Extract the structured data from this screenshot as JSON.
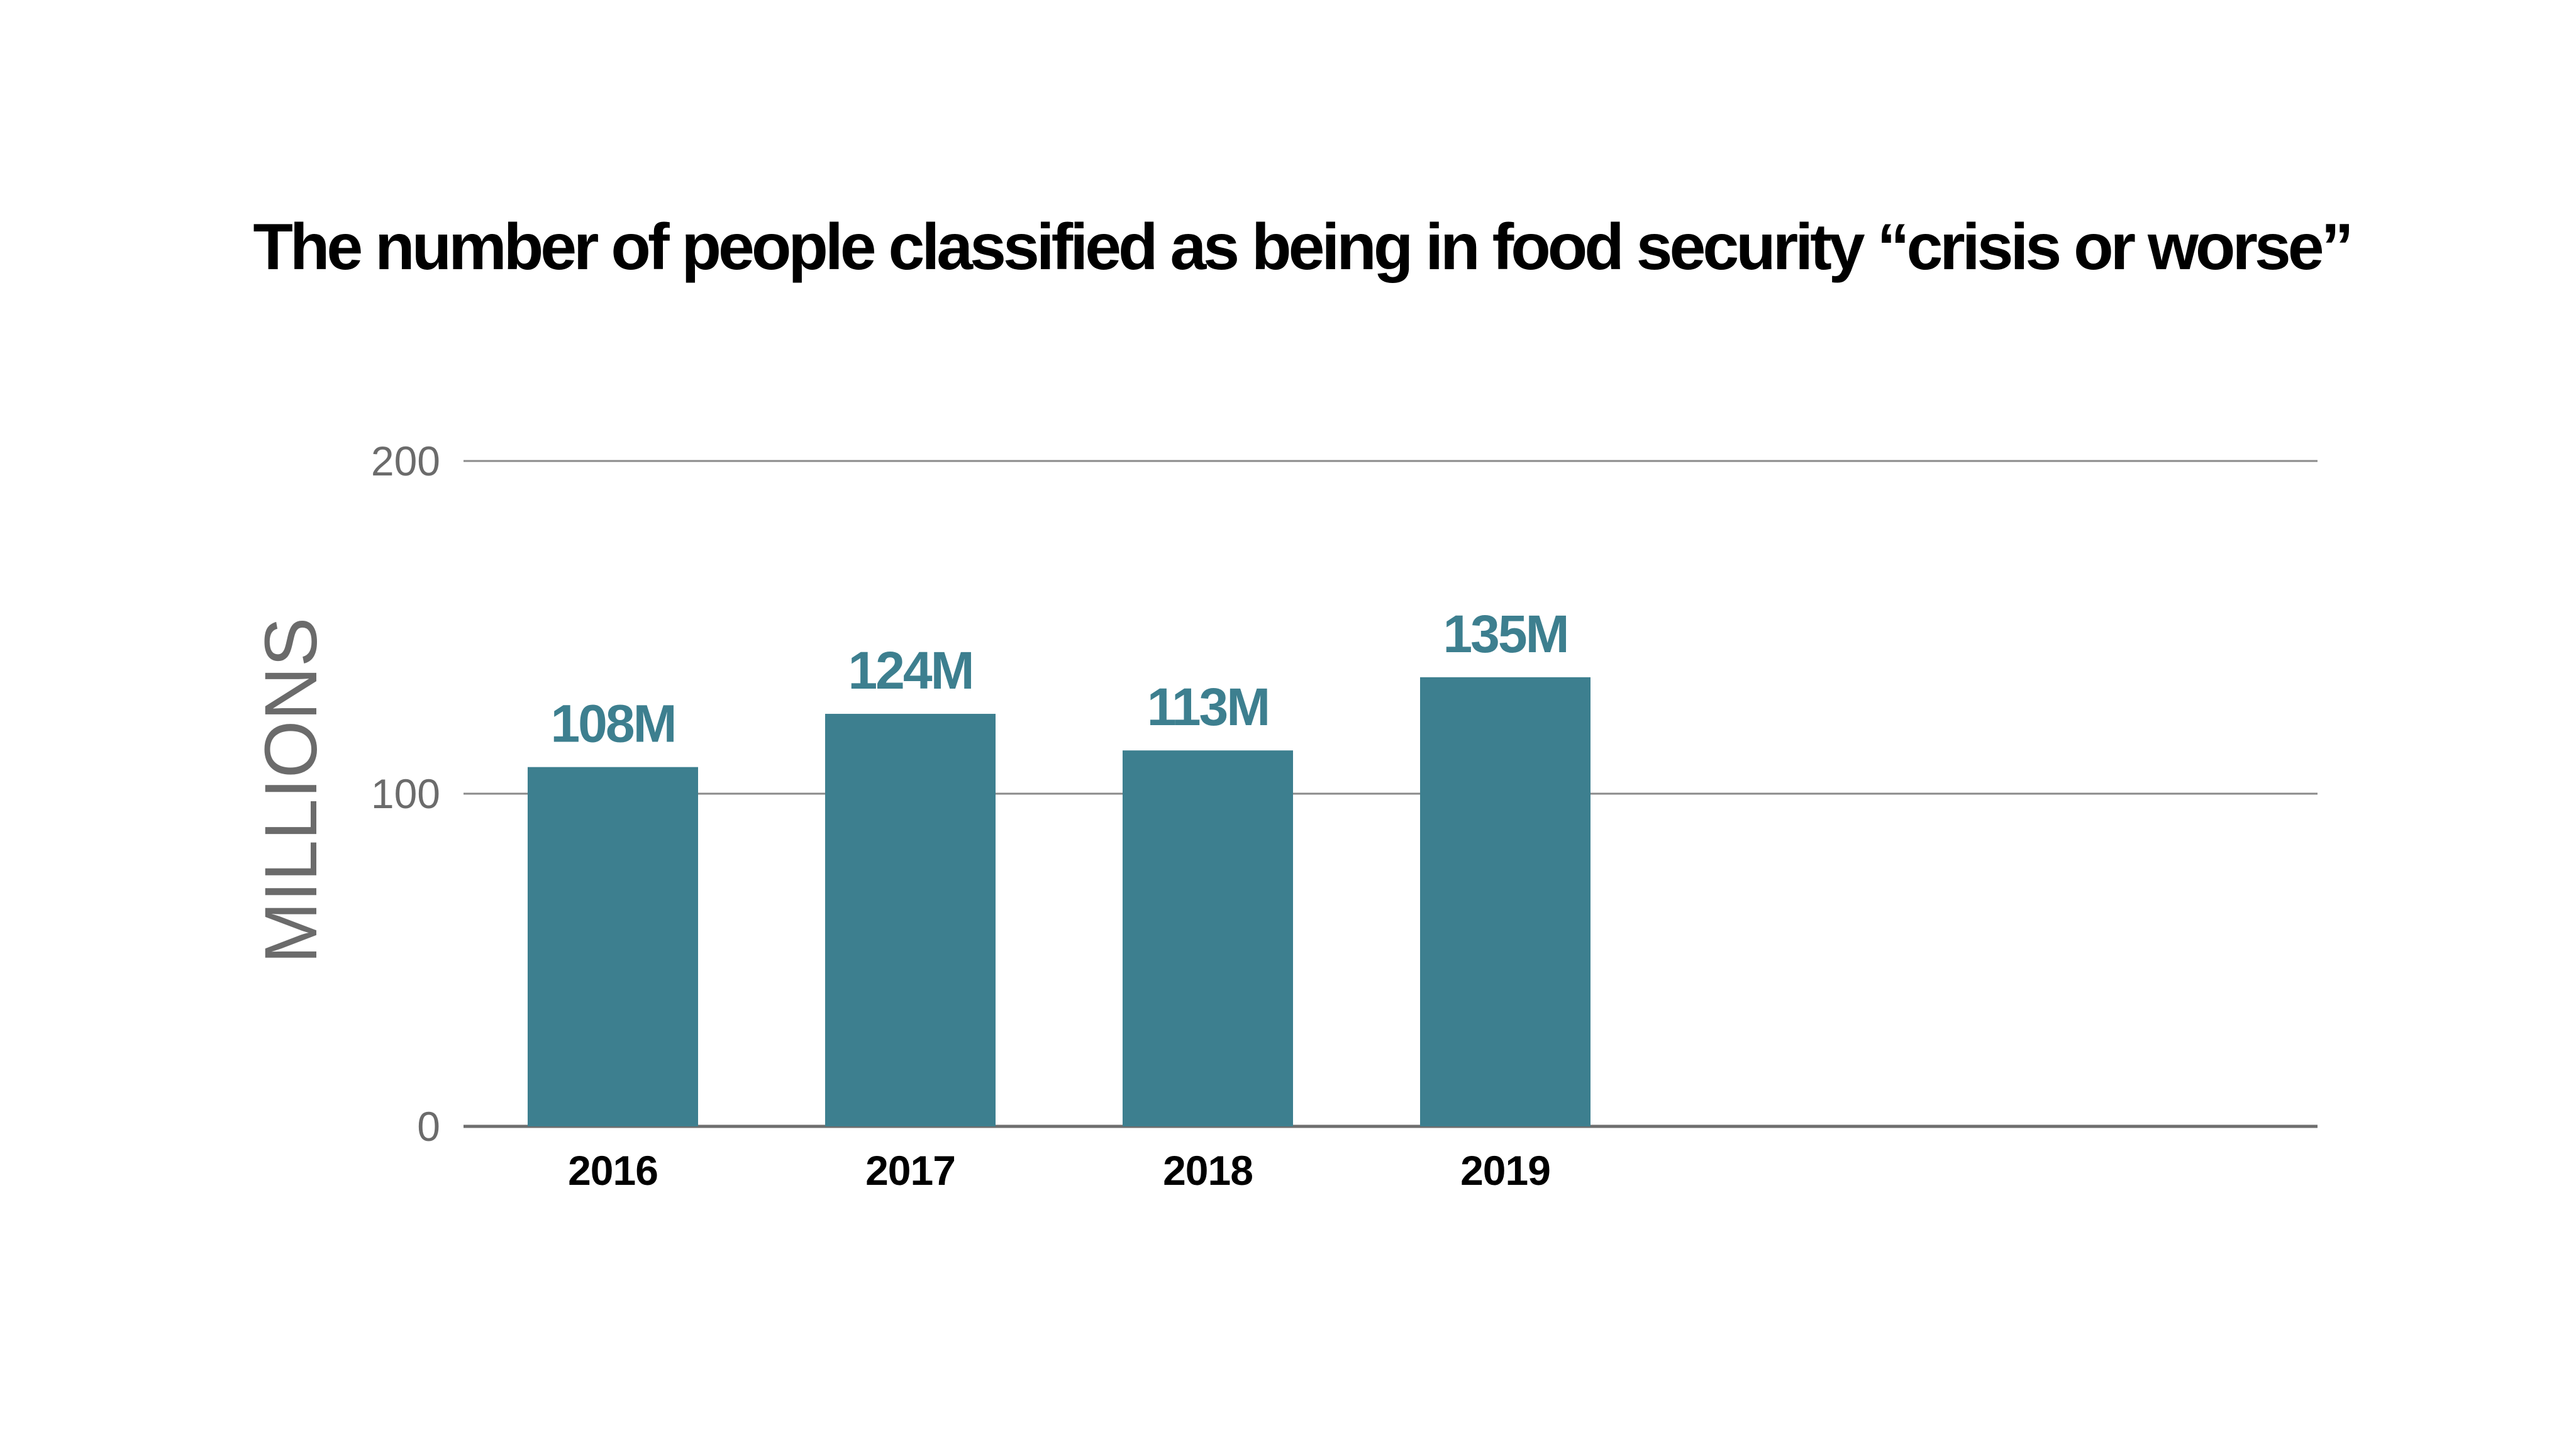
{
  "chart_data": {
    "type": "bar",
    "title": "The number of people classified as being in food security “crisis or worse”",
    "xlabel": "",
    "ylabel": "MILLIONS",
    "categories": [
      "2016",
      "2017",
      "2018",
      "2019"
    ],
    "values": [
      108,
      124,
      113,
      135
    ],
    "data_labels": [
      "108M",
      "124M",
      "113M",
      "135M"
    ],
    "unit": "millions of people",
    "ylim": [
      0,
      200
    ],
    "yticks": [
      0,
      100,
      200
    ],
    "ytick_labels": [
      "0",
      "100",
      "200"
    ],
    "grid": true,
    "legend": "none",
    "colors": {
      "bar": "#3d7f8f",
      "data_label": "#3d7f8f",
      "title": "#000000",
      "axis_text": "#6b6b6b",
      "gridline": "#8a8a8a"
    }
  }
}
